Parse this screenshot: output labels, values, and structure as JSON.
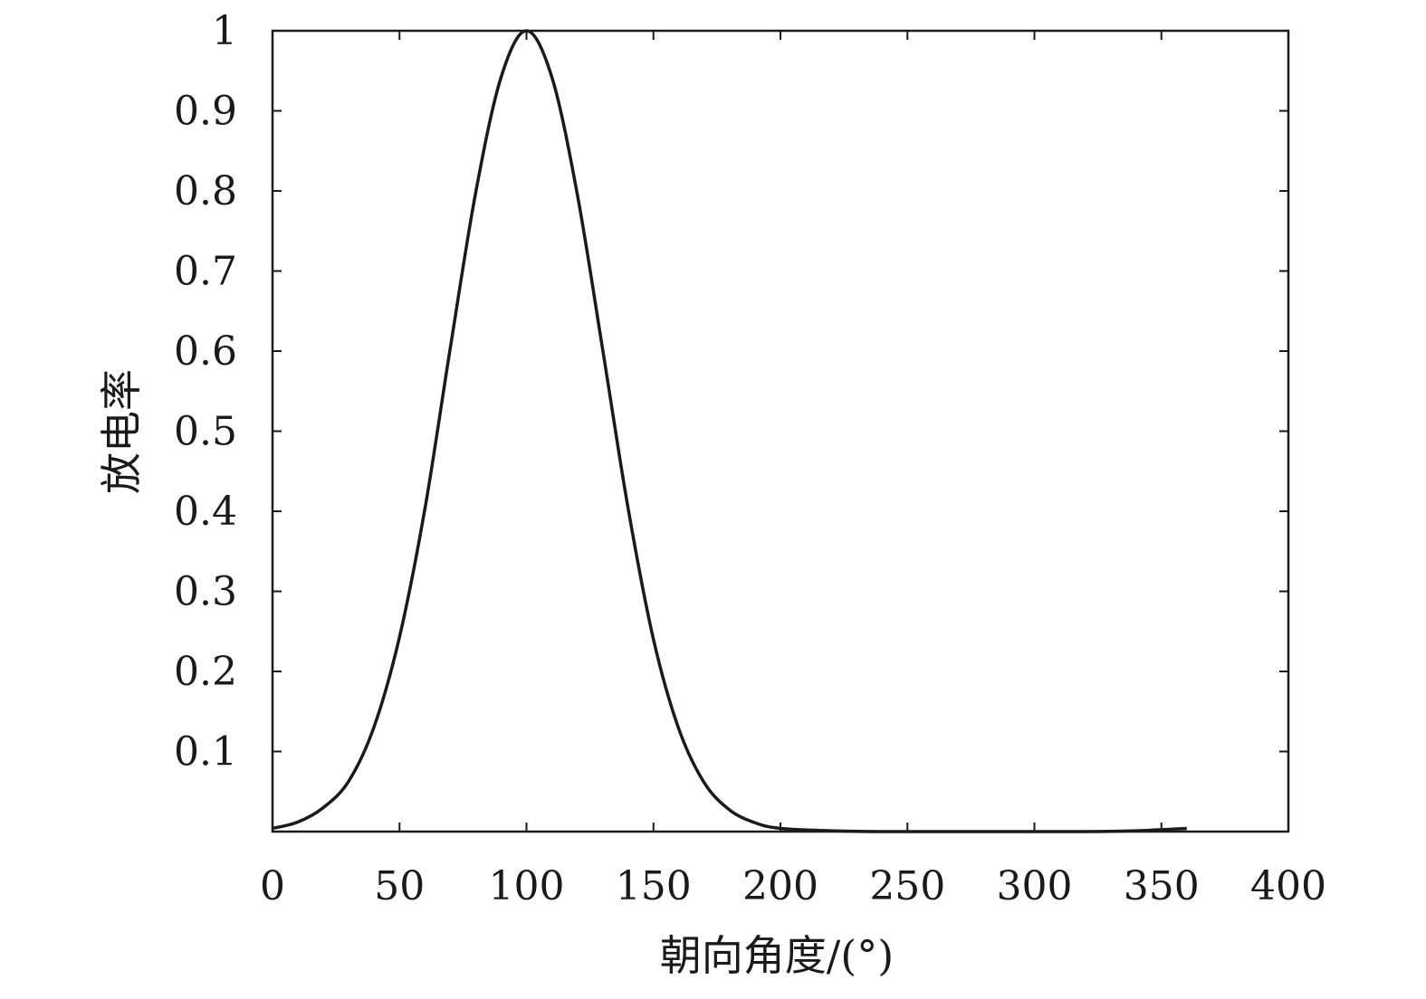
{
  "chart_data": {
    "type": "line",
    "title": "",
    "xlabel": "朝向角度/(°)",
    "ylabel": "放电率",
    "xlim": [
      0,
      400
    ],
    "ylim": [
      0,
      1
    ],
    "x_ticks": [
      0,
      50,
      100,
      150,
      200,
      250,
      300,
      350,
      400
    ],
    "y_ticks": [
      0.1,
      0.2,
      0.3,
      0.4,
      0.5,
      0.6,
      0.7,
      0.8,
      0.9,
      1
    ],
    "x_tick_labels": [
      "0",
      "50",
      "100",
      "150",
      "200",
      "250",
      "300",
      "350",
      "400"
    ],
    "y_tick_labels": [
      "0.1",
      "0.2",
      "0.3",
      "0.4",
      "0.5",
      "0.6",
      "0.7",
      "0.8",
      "0.9",
      "1"
    ],
    "grid": false,
    "series": [
      {
        "color": "#1a1a1a",
        "x": [
          0,
          10,
          20,
          30,
          40,
          50,
          60,
          70,
          80,
          90,
          100,
          110,
          120,
          130,
          140,
          150,
          160,
          170,
          180,
          190,
          200,
          220,
          240,
          260,
          280,
          300,
          320,
          340,
          360
        ],
        "y": [
          0.004,
          0.012,
          0.03,
          0.063,
          0.131,
          0.243,
          0.403,
          0.604,
          0.798,
          0.942,
          1.0,
          0.942,
          0.796,
          0.602,
          0.404,
          0.24,
          0.128,
          0.061,
          0.027,
          0.011,
          0.004,
          0.001,
          0.0,
          0.0,
          0.0,
          0.0,
          0.0,
          0.001,
          0.004
        ]
      }
    ]
  }
}
